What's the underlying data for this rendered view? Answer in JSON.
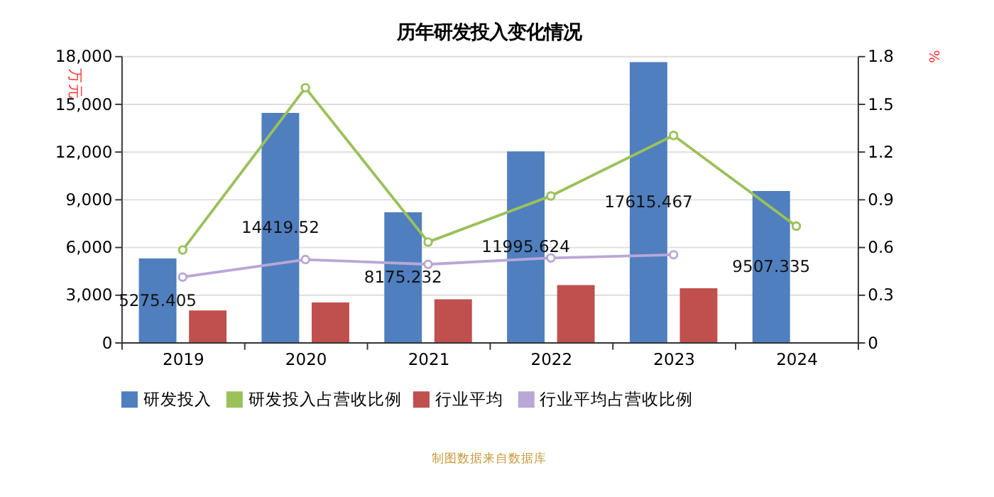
{
  "chart_data": {
    "type": "bar",
    "title": "历年研发投入变化情况",
    "ylabel": "万元",
    "y2label": "%",
    "categories": [
      "2019",
      "2020",
      "2021",
      "2022",
      "2023",
      "2024"
    ],
    "series": [
      {
        "name": "研发投入",
        "color": "#4f7fbf",
        "values": [
          5275.405,
          14419.52,
          8175.232,
          11995.624,
          17615.467,
          9507.335
        ],
        "value_labels": [
          "5275.405",
          "14419.52",
          "8175.232",
          "11995.624",
          "17615.467",
          "9507.335"
        ]
      },
      {
        "name": "研发投入占营收比例",
        "type": "line",
        "axis": "y2",
        "color": "#9bc15a",
        "values": [
          0.58,
          1.6,
          0.63,
          0.92,
          1.3,
          0.73
        ]
      },
      {
        "name": "行业平均",
        "color": "#c0504d",
        "values": [
          2000,
          2500,
          2700,
          3600,
          3400,
          null
        ]
      },
      {
        "name": "行业平均占营收比例",
        "type": "line",
        "axis": "y2",
        "color": "#b9a7d6",
        "values": [
          0.41,
          0.52,
          0.49,
          0.53,
          0.55,
          null
        ]
      }
    ],
    "ylim": [
      0,
      18000
    ],
    "yticks": [
      {
        "value": 0,
        "label": "0"
      },
      {
        "value": 3000,
        "label": "3,000"
      },
      {
        "value": 6000,
        "label": "6,000"
      },
      {
        "value": 9000,
        "label": "9,000"
      },
      {
        "value": 12000,
        "label": "12,000"
      },
      {
        "value": 15000,
        "label": "15,000"
      },
      {
        "value": 18000,
        "label": "18,000"
      }
    ],
    "y2lim": [
      0,
      1.8
    ],
    "y2ticks": [
      0,
      0.3,
      0.6,
      0.9,
      1.2,
      1.5,
      1.8
    ],
    "grid": "y",
    "legend": "bottom",
    "marker": "circle",
    "annotations": [
      "制图数据来自数据库"
    ]
  }
}
